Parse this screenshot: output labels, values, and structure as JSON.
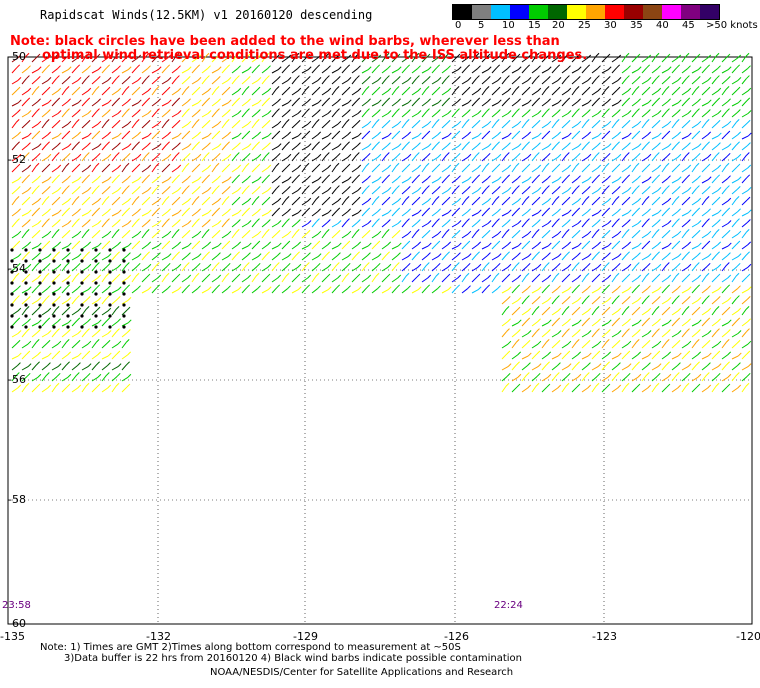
{
  "header": {
    "title": "Rapidscat Winds(12.5KM) v1 20160120 descending",
    "note_line1": "Note: black circles have been added to the wind barbs, wherever less than",
    "note_line2": "optimal wind retrieval conditions are met due to the ISS altitude changes."
  },
  "legend": {
    "colors": [
      "#000000",
      "#7f7f7f",
      "#00bfff",
      "#0000ff",
      "#00cc00",
      "#006600",
      "#ffff00",
      "#ffa500",
      "#ff0000",
      "#990000",
      "#8b4513",
      "#ff00ff",
      "#800080",
      "#330066"
    ],
    "labels": [
      "0",
      "5",
      "10",
      "15",
      "20",
      "25",
      "30",
      "35",
      "40",
      "45",
      ">50 knots"
    ],
    "units": "knots"
  },
  "map": {
    "lon_labels": [
      "-135",
      "-132",
      "-129",
      "-126",
      "-123",
      "-120"
    ],
    "lat_labels": [
      "-50",
      "-52",
      "-54",
      "-56",
      "-58",
      "-60"
    ],
    "time_left": "23:58",
    "time_right": "22:24"
  },
  "footer": {
    "line1": "Note: 1) Times are GMT 2)Times along bottom correspond to measurement at ~50S",
    "line2": "3)Data buffer is 22 hrs from 20160120 4) Black wind barbs indicate possible contamination",
    "line3": "NOAA/NESDIS/Center for Satellite Applications and Research"
  }
}
